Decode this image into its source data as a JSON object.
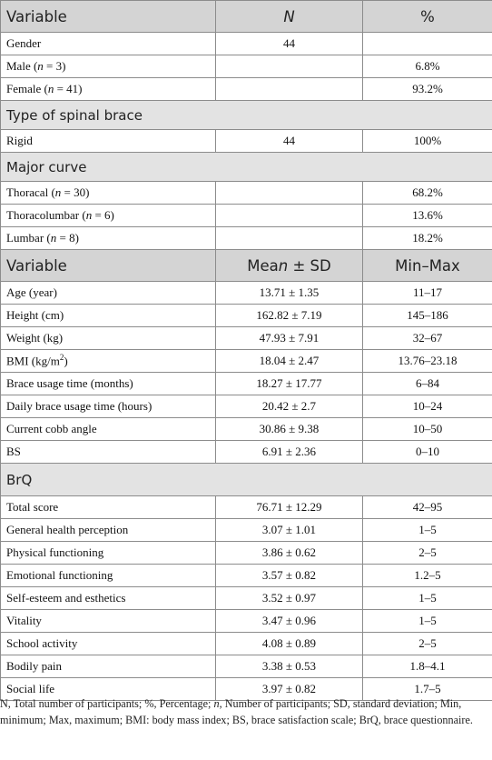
{
  "header1": {
    "variable": "Variable",
    "n": "N",
    "pct": "%"
  },
  "gender": {
    "label": "Gender",
    "n": "44",
    "male": {
      "label": "Male (",
      "nvar": "n",
      "suffix": " = 3)",
      "pct": "6.8%"
    },
    "female": {
      "label": "Female (",
      "nvar": "n",
      "suffix": " = 41)",
      "pct": "93.2%"
    }
  },
  "brace_type": {
    "title": "Type of spinal brace",
    "rigid": {
      "label": "Rigid",
      "n": "44",
      "pct": "100%"
    }
  },
  "major_curve": {
    "title": "Major curve",
    "rows": [
      {
        "label": "Thoracal (",
        "nvar": "n",
        "suffix": " = 30)",
        "pct": "68.2%"
      },
      {
        "label": "Thoracolumbar (",
        "nvar": "n",
        "suffix": " = 6)",
        "pct": "13.6%"
      },
      {
        "label": "Lumbar (",
        "nvar": "n",
        "suffix": " = 8)",
        "pct": "18.2%"
      }
    ]
  },
  "header2": {
    "variable": "Variable",
    "mean_a": "Mea",
    "mean_n": "n",
    "mean_b": " ± SD",
    "minmax": "Min–Max"
  },
  "stats": [
    {
      "label": "Age (year)",
      "mean": "13.71 ± 1.35",
      "range": "11–17"
    },
    {
      "label": "Height (cm)",
      "mean": "162.82 ± 7.19",
      "range": "145–186"
    },
    {
      "label": "Weight (kg)",
      "mean": "47.93 ± 7.91",
      "range": "32–67"
    },
    {
      "label": "BMI (kg/m",
      "sup": "2",
      "label_end": ")",
      "mean": "18.04 ± 2.47",
      "range": "13.76–23.18"
    },
    {
      "label": "Brace usage time (months)",
      "mean": "18.27 ± 17.77",
      "range": "6–84"
    },
    {
      "label": "Daily brace usage time (hours)",
      "mean": "20.42 ± 2.7",
      "range": "10–24"
    },
    {
      "label": "Current cobb angle",
      "mean": "30.86 ± 9.38",
      "range": "10–50"
    },
    {
      "label": "BS",
      "mean": "6.91 ± 2.36",
      "range": "0–10"
    }
  ],
  "brq": {
    "title": "BrQ",
    "rows": [
      {
        "label": "Total score",
        "mean": "76.71 ± 12.29",
        "range": "42–95"
      },
      {
        "label": "General health perception",
        "mean": "3.07 ± 1.01",
        "range": "1–5"
      },
      {
        "label": "Physical functioning",
        "mean": "3.86 ± 0.62",
        "range": "2–5"
      },
      {
        "label": "Emotional functioning",
        "mean": "3.57 ± 0.82",
        "range": "1.2–5"
      },
      {
        "label": "Self-esteem and esthetics",
        "mean": "3.52 ± 0.97",
        "range": "1–5"
      },
      {
        "label": "Vitality",
        "mean": "3.47 ± 0.96",
        "range": "1–5"
      },
      {
        "label": "School activity",
        "mean": "4.08 ± 0.89",
        "range": "2–5"
      },
      {
        "label": "Bodily pain",
        "mean": "3.38 ± 0.53",
        "range": "1.8–4.1"
      },
      {
        "label": "Social life",
        "mean": "3.97 ± 0.82",
        "range": "1.7–5"
      }
    ]
  },
  "footnote": {
    "a": "N, Total number of participants; %, Percentage; ",
    "n": "n",
    "b": ", Number of participants; SD, standard deviation; Min, minimum; Max, maximum; BMI: body mass index; BS, brace satisfaction scale; BrQ, brace questionnaire."
  }
}
